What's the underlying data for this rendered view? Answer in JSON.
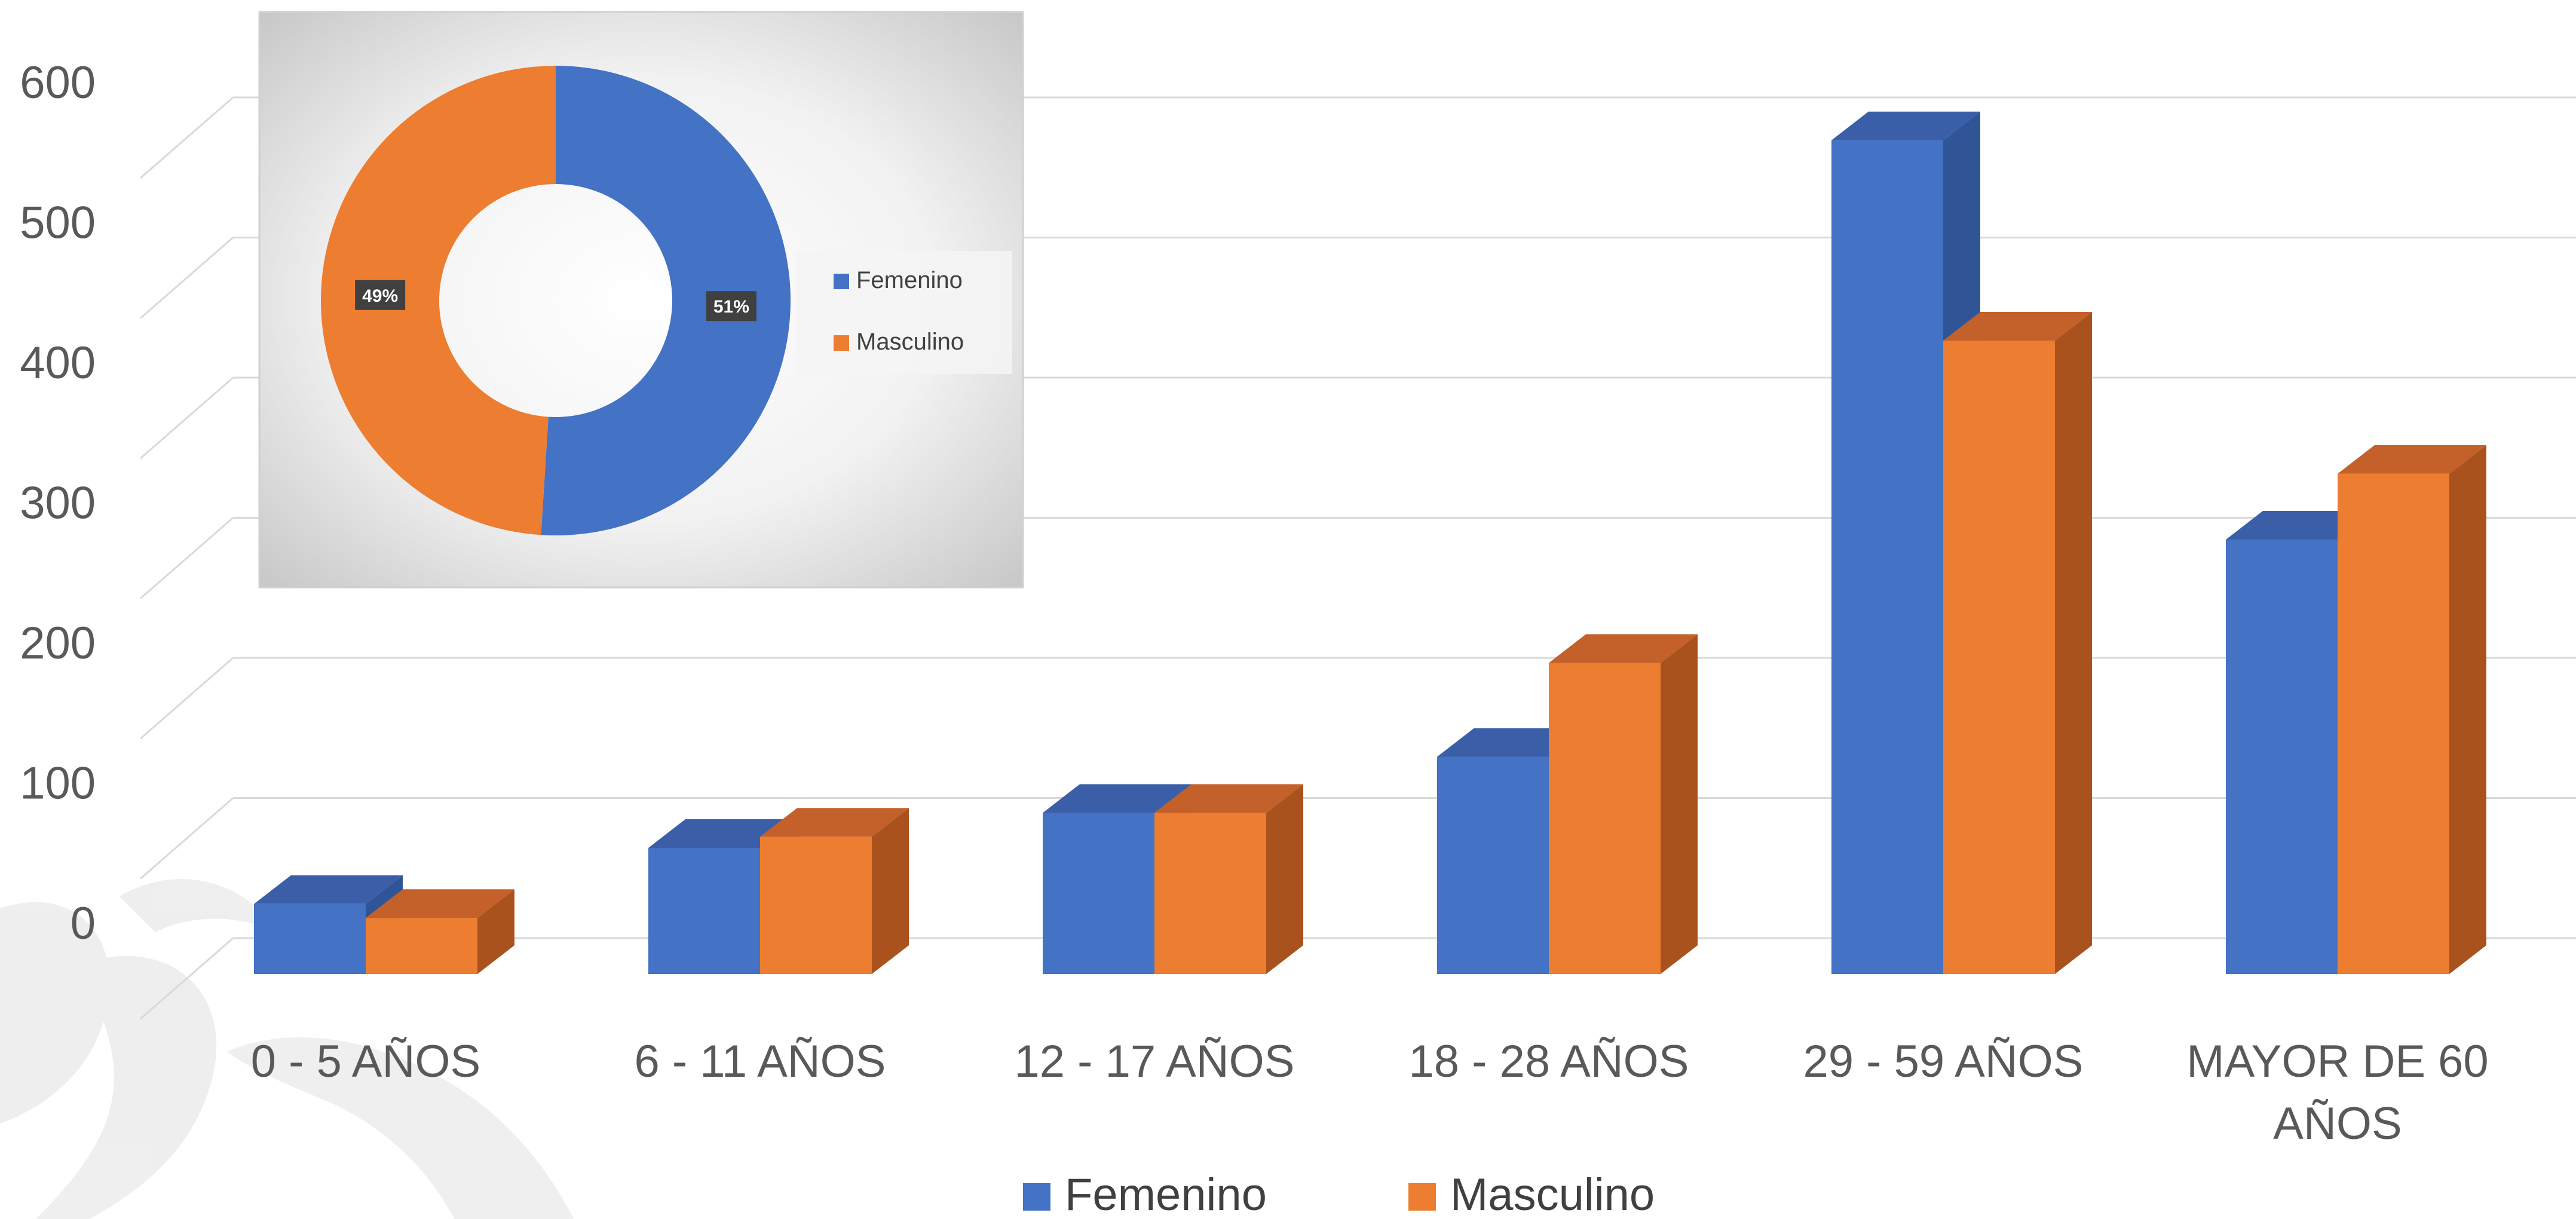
{
  "colors": {
    "femenino": "#4472C4",
    "femenino_side": "#2F5597",
    "femenino_top": "#3A5FA8",
    "masculino": "#ED7D31",
    "masculino_side": "#A9521E",
    "masculino_top": "#C4602A",
    "gridline": "#D9D9D9",
    "axis_text": "#595959"
  },
  "chart_data": [
    {
      "type": "bar",
      "style": "3d-clustered-column",
      "categories": [
        "0 - 5 AÑOS",
        "6 - 11 AÑOS",
        "12 - 17 AÑOS",
        "18 - 28 AÑOS",
        "29 - 59 AÑOS",
        "MAYOR DE 60 AÑOS"
      ],
      "series": [
        {
          "name": "Femenino",
          "values": [
            50,
            90,
            115,
            155,
            595,
            310
          ]
        },
        {
          "name": "Masculino",
          "values": [
            40,
            98,
            115,
            222,
            452,
            357
          ]
        }
      ],
      "yticks": [
        "0",
        "100",
        "200",
        "300",
        "400",
        "500",
        "600"
      ],
      "ylim": [
        0,
        600
      ],
      "grid": true,
      "legend": "bottom-center"
    },
    {
      "type": "pie",
      "style": "doughnut",
      "labels": [
        "Femenino",
        "Masculino"
      ],
      "values": [
        51,
        49
      ],
      "data_labels": [
        "51%",
        "49%"
      ],
      "legend": "right"
    }
  ]
}
